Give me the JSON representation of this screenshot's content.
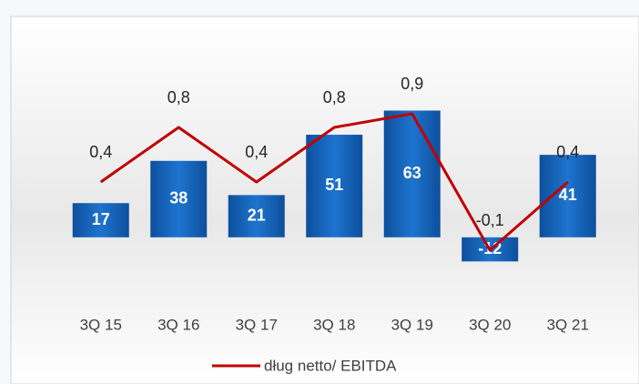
{
  "chart_data": {
    "type": "bar",
    "categories": [
      "3Q 15",
      "3Q 16",
      "3Q 17",
      "3Q 18",
      "3Q 19",
      "3Q 20",
      "3Q 21"
    ],
    "series": [
      {
        "type": "bar",
        "color": "#1565c0",
        "values": [
          17,
          38,
          21,
          51,
          63,
          -12,
          41
        ]
      },
      {
        "type": "line",
        "name": "dług netto/ EBITDA",
        "color": "#c00000",
        "axis": "y2",
        "values": [
          0.4,
          0.8,
          0.4,
          0.8,
          0.9,
          -0.1,
          0.4
        ],
        "value_labels": [
          "0,4",
          "0,8",
          "0,4",
          "0,8",
          "0,9",
          "-0,1",
          "0,4"
        ]
      }
    ],
    "ylim": [
      -20,
      75
    ],
    "y2lim": [
      -0.3,
      1.1
    ],
    "legend": "bottom"
  }
}
